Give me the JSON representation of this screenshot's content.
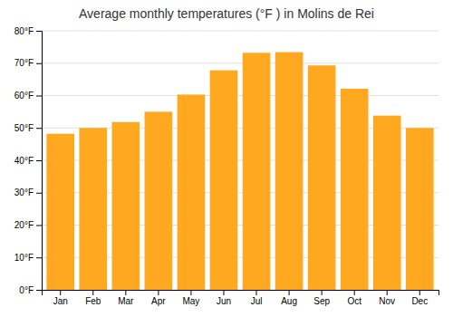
{
  "chart_data": {
    "type": "bar",
    "title": "Average monthly temperatures (°F ) in Molins de Rei",
    "categories": [
      "Jan",
      "Feb",
      "Mar",
      "Apr",
      "May",
      "Jun",
      "Jul",
      "Aug",
      "Sep",
      "Oct",
      "Nov",
      "Dec"
    ],
    "values": [
      48.2,
      50.0,
      51.8,
      55.0,
      60.3,
      67.8,
      73.2,
      73.4,
      69.3,
      62.1,
      53.8,
      50.0
    ],
    "color": "#FFA820",
    "ylim": [
      0,
      80
    ],
    "yticks": [
      {
        "value": 0,
        "label": "0°F"
      },
      {
        "value": 10,
        "label": "10°F"
      },
      {
        "value": 20,
        "label": "20°F"
      },
      {
        "value": 30,
        "label": "30°F"
      },
      {
        "value": 40,
        "label": "40°F"
      },
      {
        "value": 50,
        "label": "50°F"
      },
      {
        "value": 60,
        "label": "60°F"
      },
      {
        "value": 70,
        "label": "70°F"
      },
      {
        "value": 80,
        "label": "80°F"
      }
    ],
    "grid": true
  }
}
